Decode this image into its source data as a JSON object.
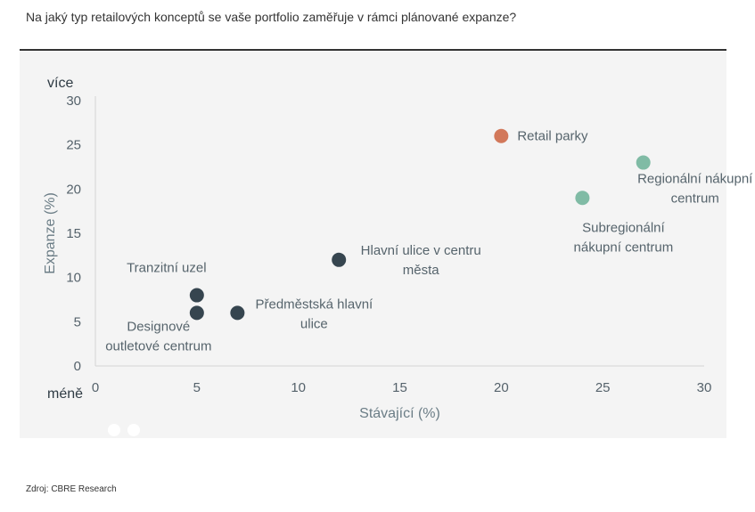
{
  "question": "Na jaký typ retailových konceptů se vaše portfolio zaměřuje v rámci plánované expanze?",
  "source": "Zdroj: CBRE Research",
  "colors": {
    "panel": "#f4f4f4",
    "dark": "#36454f",
    "teal": "#80bba5",
    "highlight": "#d2785a"
  },
  "chart_data": {
    "type": "scatter",
    "xlabel": "Stávající (%)",
    "ylabel": "Expanze (%)",
    "xlim": [
      0,
      30
    ],
    "ylim": [
      0,
      30
    ],
    "xticks": [
      0,
      5,
      10,
      15,
      20,
      25,
      30
    ],
    "yticks": [
      0,
      5,
      10,
      15,
      20,
      25,
      30
    ],
    "y_top_label": "více",
    "y_bottom_label": "méně",
    "grid": false,
    "points": [
      {
        "label": "Retail parky",
        "x": 20,
        "y": 26,
        "color": "#d2785a"
      },
      {
        "label": "Regionální nákupní centrum",
        "x": 27,
        "y": 23,
        "color": "#80bba5"
      },
      {
        "label": "Subregionální nákupní centrum",
        "x": 24,
        "y": 19,
        "color": "#80bba5"
      },
      {
        "label": "Hlavní ulice v centru města",
        "x": 12,
        "y": 12,
        "color": "#36454f"
      },
      {
        "label": "Tranzitní uzel",
        "x": 5,
        "y": 8,
        "color": "#36454f"
      },
      {
        "label": "Designové outletové centrum",
        "x": 5,
        "y": 6,
        "color": "#36454f"
      },
      {
        "label": "Předměstská hlavní ulice",
        "x": 7,
        "y": 6,
        "color": "#36454f"
      }
    ]
  }
}
